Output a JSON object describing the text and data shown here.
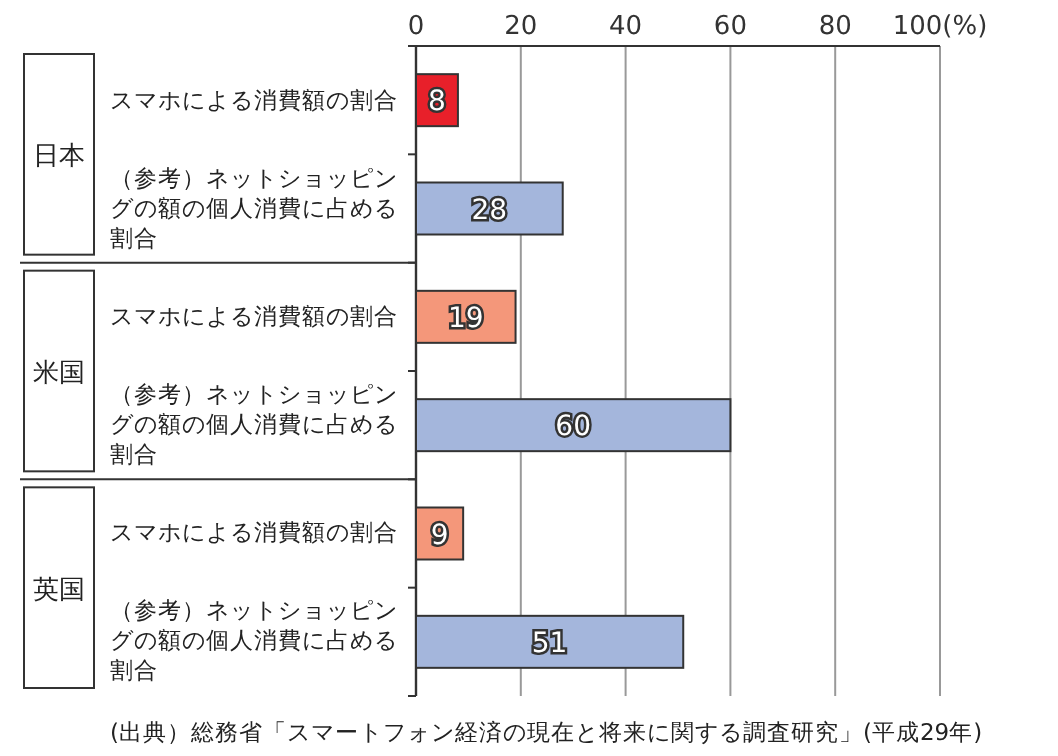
{
  "chart_data": {
    "type": "bar",
    "orientation": "horizontal",
    "categories": [
      "スマホによる消費額の割合",
      "（参考）ネットショッピングの額の個人消費に占める割合",
      "スマホによる消費額の割合",
      "（参考）ネットショッピングの額の個人消費に占める割合",
      "スマホによる消費額の割合",
      "（参考）ネットショッピングの額の個人消費に占める割合"
    ],
    "values": [
      8,
      28,
      19,
      60,
      9,
      51
    ],
    "colors": [
      "#e8202a",
      "#a4b6dc",
      "#f4977a",
      "#a4b6dc",
      "#f4977a",
      "#a4b6dc"
    ],
    "xlim": [
      0,
      100
    ],
    "xticks": [
      0,
      20,
      40,
      60,
      80,
      {
        "value": 100,
        "label": "100(%)"
      }
    ],
    "grid": "x",
    "data_labels": true,
    "annotations": [
      "日本",
      "米国",
      "英国",
      "(出典）総務省「スマートフォン経済の現在と将来に関する調査研究」(平成29年)"
    ]
  }
}
